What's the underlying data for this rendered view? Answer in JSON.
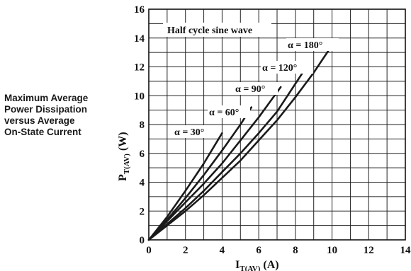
{
  "caption": {
    "lines": [
      "Maximum Average",
      "Power Dissipation",
      "versus Average",
      "On-State Current"
    ]
  },
  "chart_data": {
    "type": "line",
    "xlabel": {
      "main": "I",
      "sub": "T(AV)",
      "unit": " (A)"
    },
    "ylabel": {
      "main": "P",
      "sub": "T(AV)",
      "unit": " (W)"
    },
    "xlim": [
      0,
      14
    ],
    "ylim": [
      0,
      16
    ],
    "x_ticks": [
      0,
      2,
      4,
      6,
      8,
      10,
      12,
      14
    ],
    "y_ticks": [
      0,
      2,
      4,
      6,
      8,
      10,
      12,
      14,
      16
    ],
    "x_minor_step": 1,
    "y_minor_step": 1,
    "grid": true,
    "annotation": "Half cycle sine wave",
    "series": [
      {
        "name": "α = 30°",
        "x": [
          0,
          1,
          2,
          3,
          4
        ],
        "y": [
          0,
          1.6,
          3.4,
          5.3,
          7.4
        ]
      },
      {
        "name": "α = 60°",
        "x": [
          0,
          1,
          2,
          3,
          4,
          5,
          5.6
        ],
        "y": [
          0,
          1.4,
          2.9,
          4.5,
          6.2,
          8.0,
          9.2
        ]
      },
      {
        "name": "α = 90°",
        "x": [
          0,
          1,
          2,
          3,
          4,
          5,
          6,
          7.2
        ],
        "y": [
          0,
          1.3,
          2.6,
          3.9,
          5.3,
          6.9,
          8.5,
          10.6
        ]
      },
      {
        "name": "α = 120°",
        "x": [
          0,
          1,
          2,
          3,
          4,
          5,
          6,
          7,
          8.5
        ],
        "y": [
          0,
          1.1,
          2.2,
          3.4,
          4.7,
          6.0,
          7.4,
          8.9,
          11.8
        ]
      },
      {
        "name": "α = 180°",
        "x": [
          0,
          1,
          2,
          3,
          4,
          5,
          6,
          7,
          8,
          9,
          10
        ],
        "y": [
          0,
          1.0,
          2.0,
          3.1,
          4.3,
          5.5,
          6.9,
          8.3,
          9.9,
          11.6,
          13.5
        ]
      }
    ]
  }
}
